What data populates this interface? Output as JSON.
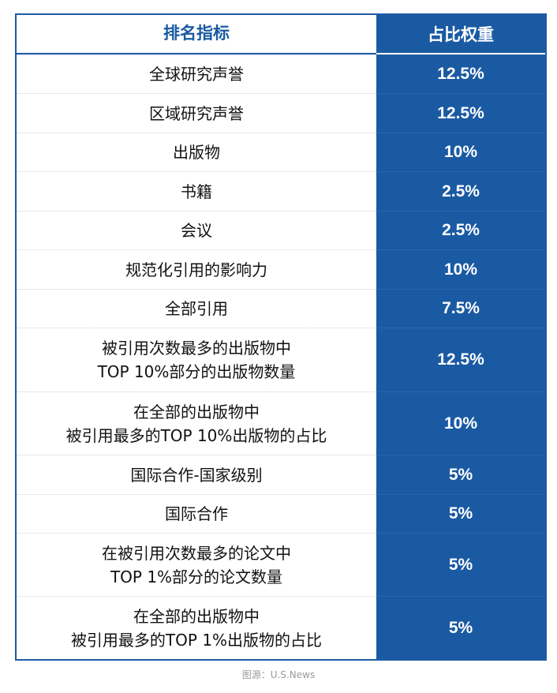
{
  "header": {
    "metric_label": "排名指标",
    "weight_label": "占比权重"
  },
  "rows": [
    {
      "metric": "全球研究声誉",
      "weight": "12.5%"
    },
    {
      "metric": "区域研究声誉",
      "weight": "12.5%"
    },
    {
      "metric": "出版物",
      "weight": "10%"
    },
    {
      "metric": "书籍",
      "weight": "2.5%"
    },
    {
      "metric": "会议",
      "weight": "2.5%"
    },
    {
      "metric": "规范化引用的影响力",
      "weight": "10%"
    },
    {
      "metric": "全部引用",
      "weight": "7.5%"
    },
    {
      "metric": "被引用次数最多的出版物中\nTOP 10%部分的出版物数量",
      "weight": "12.5%"
    },
    {
      "metric": "在全部的出版物中\n被引用最多的TOP 10%出版物的占比",
      "weight": "10%"
    },
    {
      "metric": "国际合作-国家级别",
      "weight": "5%"
    },
    {
      "metric": "国际合作",
      "weight": "5%"
    },
    {
      "metric": "在被引用次数最多的论文中\nTOP 1%部分的论文数量",
      "weight": "5%"
    },
    {
      "metric": "在全部的出版物中\n被引用最多的TOP 1%出版物的占比",
      "weight": "5%"
    }
  ],
  "source": "图源：U.S.News"
}
